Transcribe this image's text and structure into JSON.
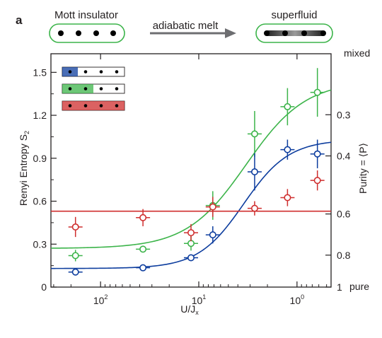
{
  "panel_label": "a",
  "header": {
    "left_label": "Mott insulator",
    "arrow_label": "adiabatic melt",
    "right_label": "superfluid"
  },
  "chart_data": {
    "type": "scatter",
    "xlabel_main": "U/J",
    "xlabel_sub": "x",
    "ylabel_main": "Renyi Entropy  S",
    "ylabel_sub": "2",
    "y2label": "Purity = ⟨P⟩",
    "x_tick_labels": [
      "10^2",
      "10^1",
      "10^0"
    ],
    "y_ticks": [
      0,
      0.3,
      0.6,
      0.9,
      1.2,
      1.5
    ],
    "y_tick_labels": [
      "0",
      "0.3",
      "0.6",
      "0.9",
      "1.2",
      "1.5"
    ],
    "right_ticks": [
      {
        "purity": 1,
        "label": "1"
      },
      {
        "purity": 0.8,
        "label": "0.8"
      },
      {
        "purity": 0.6,
        "label": "0.6"
      },
      {
        "purity": 0.4,
        "label": "0.4"
      },
      {
        "purity": 0.3,
        "label": "0.3"
      }
    ],
    "right_top_label": "mixed",
    "right_bottom_label": "pure",
    "xlim": [
      320,
      0.45
    ],
    "ylim": [
      0,
      1.63
    ],
    "x_scale": "log, reversed",
    "legend": "top-left",
    "legend_sites": 4,
    "colors": {
      "green": "#3cb44a",
      "blue": "#0d3d9e",
      "red": "#cf2e2e"
    },
    "series": [
      {
        "color": "green",
        "legend_filled_sites": 2,
        "points": [
          {
            "x": 180,
            "y": 0.22,
            "err": 0.04
          },
          {
            "x": 37,
            "y": 0.265,
            "err": 0.02
          },
          {
            "x": 12,
            "y": 0.305,
            "err": 0.05
          },
          {
            "x": 7.2,
            "y": 0.57,
            "err": 0.1
          },
          {
            "x": 2.7,
            "y": 1.07,
            "err": 0.16
          },
          {
            "x": 1.25,
            "y": 1.26,
            "err": 0.13
          },
          {
            "x": 0.62,
            "y": 1.36,
            "err": 0.17
          }
        ],
        "fit": {
          "low": 0.27,
          "high": 1.44,
          "mid": 3.3,
          "width": 0.55
        }
      },
      {
        "color": "blue",
        "legend_filled_sites": 1,
        "points": [
          {
            "x": 180,
            "y": 0.105,
            "err": 0.015
          },
          {
            "x": 37,
            "y": 0.135,
            "err": 0.015
          },
          {
            "x": 12,
            "y": 0.205,
            "err": 0.015
          },
          {
            "x": 7.2,
            "y": 0.365,
            "err": 0.06
          },
          {
            "x": 2.7,
            "y": 0.805,
            "err": 0.13
          },
          {
            "x": 1.25,
            "y": 0.96,
            "err": 0.07
          },
          {
            "x": 0.62,
            "y": 0.93,
            "err": 0.1
          }
        ],
        "fit": {
          "low": 0.13,
          "high": 1.03,
          "mid": 3.5,
          "width": 0.42
        }
      },
      {
        "color": "red",
        "legend_filled_sites": 4,
        "points": [
          {
            "x": 180,
            "y": 0.42,
            "err": 0.07
          },
          {
            "x": 37,
            "y": 0.485,
            "err": 0.06
          },
          {
            "x": 12,
            "y": 0.38,
            "err": 0.06
          },
          {
            "x": 7.2,
            "y": 0.56,
            "err": 0.07
          },
          {
            "x": 2.7,
            "y": 0.55,
            "err": 0.05
          },
          {
            "x": 1.25,
            "y": 0.625,
            "err": 0.06
          },
          {
            "x": 0.62,
            "y": 0.745,
            "err": 0.07
          }
        ],
        "fit": {
          "constant": 0.53
        }
      }
    ]
  }
}
